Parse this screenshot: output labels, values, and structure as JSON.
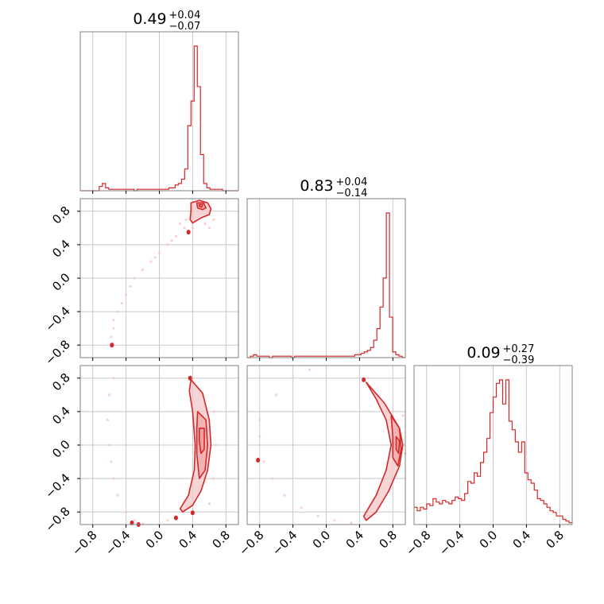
{
  "figure": {
    "type": "corner-plot"
  },
  "colors": {
    "line": "#d62728",
    "fill": "#f4c7c8",
    "fill_dark": "#e88a8c",
    "grid": "#c8c8c8",
    "axes": "#808080"
  },
  "chart_data": {
    "type": "corner",
    "axis_range": [
      -0.95,
      0.95
    ],
    "ticks": [
      -0.8,
      -0.4,
      0.0,
      0.4,
      0.8
    ],
    "tick_labels": [
      "−0.8",
      "−0.4",
      "0.0",
      "0.4",
      "0.8"
    ],
    "grid": true,
    "parameters": [
      {
        "title": {
          "value": "0.49",
          "upper": "+0.04",
          "lower": "−0.07"
        },
        "histogram": [
          0,
          0,
          0,
          0,
          0,
          0,
          0.03,
          0.05,
          0.02,
          0.01,
          0.01,
          0.01,
          0.01,
          0.01,
          0.01,
          0.01,
          0.01,
          0,
          0.01,
          0.01,
          0.01,
          0.01,
          0.01,
          0.01,
          0.01,
          0.01,
          0.01,
          0.01,
          0.02,
          0.02,
          0.04,
          0.05,
          0.08,
          0.15,
          0.45,
          0.62,
          1.0,
          0.72,
          0.25,
          0.05,
          0.02,
          0.01,
          0.01,
          0.01,
          0.01,
          0,
          0,
          0,
          0,
          0
        ]
      },
      {
        "title": {
          "value": "0.83",
          "upper": "+0.04",
          "lower": "−0.14"
        },
        "histogram": [
          0,
          0.01,
          0.02,
          0.01,
          0.01,
          0.01,
          0.01,
          0,
          0.01,
          0.01,
          0.01,
          0.01,
          0.01,
          0.01,
          0,
          0.01,
          0.01,
          0.01,
          0.01,
          0.01,
          0.01,
          0.01,
          0.01,
          0.01,
          0.01,
          0.01,
          0.01,
          0.01,
          0.01,
          0.01,
          0.01,
          0.01,
          0.01,
          0.01,
          0.02,
          0.02,
          0.03,
          0.04,
          0.05,
          0.07,
          0.12,
          0.2,
          0.35,
          0.55,
          1.0,
          0.28,
          0.04,
          0.02,
          0.01,
          0
        ]
      },
      {
        "title": {
          "value": "0.09",
          "upper": "+0.27",
          "lower": "−0.39"
        },
        "histogram": [
          0.1,
          0.08,
          0.1,
          0.09,
          0.12,
          0.11,
          0.15,
          0.13,
          0.12,
          0.14,
          0.13,
          0.12,
          0.14,
          0.16,
          0.15,
          0.14,
          0.18,
          0.25,
          0.24,
          0.3,
          0.28,
          0.36,
          0.42,
          0.5,
          0.65,
          0.74,
          0.82,
          0.84,
          0.7,
          0.84,
          0.6,
          0.55,
          0.48,
          0.42,
          0.48,
          0.3,
          0.26,
          0.24,
          0.2,
          0.15,
          0.14,
          0.12,
          0.1,
          0.08,
          0.07,
          0.05,
          0.05,
          0.03,
          0.02,
          0.01
        ]
      }
    ],
    "pairs": [
      {
        "row": 1,
        "col": 0,
        "contours": [
          [
            [
              0.38,
              0.9
            ],
            [
              0.48,
              0.93
            ],
            [
              0.58,
              0.9
            ],
            [
              0.62,
              0.83
            ],
            [
              0.6,
              0.76
            ],
            [
              0.5,
              0.72
            ],
            [
              0.4,
              0.66
            ],
            [
              0.37,
              0.7
            ],
            [
              0.38,
              0.8
            ]
          ],
          [
            [
              0.45,
              0.9
            ],
            [
              0.53,
              0.9
            ],
            [
              0.56,
              0.84
            ],
            [
              0.52,
              0.82
            ],
            [
              0.46,
              0.84
            ]
          ],
          [
            [
              0.48,
              0.88
            ],
            [
              0.52,
              0.88
            ],
            [
              0.51,
              0.85
            ],
            [
              0.48,
              0.86
            ]
          ]
        ],
        "points": [
          [
            0.3,
            0.6
          ],
          [
            0.32,
            0.7
          ],
          [
            0.2,
            0.5
          ],
          [
            0.1,
            0.4
          ],
          [
            0.0,
            0.3
          ],
          [
            -0.1,
            0.2
          ],
          [
            -0.2,
            0.1
          ],
          [
            -0.3,
            0.0
          ],
          [
            -0.35,
            -0.1
          ],
          [
            -0.4,
            -0.2
          ],
          [
            -0.45,
            -0.3
          ],
          [
            -0.5,
            -0.4
          ],
          [
            -0.55,
            -0.5
          ],
          [
            -0.55,
            -0.6
          ],
          [
            -0.58,
            -0.7
          ],
          [
            -0.56,
            -0.78
          ],
          [
            0.34,
            0.55
          ],
          [
            0.6,
            0.6
          ],
          [
            0.65,
            0.7
          ],
          [
            0.25,
            0.65
          ],
          [
            -0.05,
            0.25
          ],
          [
            0.15,
            0.45
          ],
          [
            0.4,
            0.6
          ],
          [
            0.55,
            0.65
          ]
        ],
        "blobs": [
          [
            -0.57,
            -0.8
          ],
          [
            0.35,
            0.55
          ]
        ]
      },
      {
        "row": 2,
        "col": 0,
        "contours": [
          [
            [
              0.38,
              0.78
            ],
            [
              0.52,
              0.62
            ],
            [
              0.6,
              0.3
            ],
            [
              0.62,
              0.0
            ],
            [
              0.58,
              -0.3
            ],
            [
              0.5,
              -0.55
            ],
            [
              0.4,
              -0.72
            ],
            [
              0.28,
              -0.8
            ],
            [
              0.25,
              -0.76
            ],
            [
              0.35,
              -0.6
            ],
            [
              0.42,
              -0.3
            ],
            [
              0.43,
              0.0
            ],
            [
              0.4,
              0.4
            ],
            [
              0.36,
              0.65
            ]
          ],
          [
            [
              0.46,
              0.4
            ],
            [
              0.56,
              0.3
            ],
            [
              0.58,
              0.0
            ],
            [
              0.55,
              -0.3
            ],
            [
              0.48,
              -0.4
            ],
            [
              0.45,
              -0.1
            ],
            [
              0.45,
              0.2
            ]
          ],
          [
            [
              0.48,
              0.2
            ],
            [
              0.54,
              0.2
            ],
            [
              0.54,
              -0.05
            ],
            [
              0.5,
              -0.1
            ],
            [
              0.48,
              0.05
            ]
          ]
        ],
        "points": [
          [
            -0.6,
            0.0
          ],
          [
            -0.58,
            -0.2
          ],
          [
            -0.55,
            -0.4
          ],
          [
            -0.5,
            -0.6
          ],
          [
            -0.4,
            -0.8
          ],
          [
            -0.3,
            -0.9
          ],
          [
            -0.2,
            -0.94
          ],
          [
            0.0,
            -0.95
          ],
          [
            0.1,
            -0.9
          ],
          [
            0.2,
            -0.86
          ],
          [
            -0.62,
            0.3
          ],
          [
            -0.6,
            0.6
          ],
          [
            -0.55,
            0.8
          ],
          [
            0.6,
            -0.7
          ],
          [
            0.65,
            -0.4
          ],
          [
            0.68,
            0.0
          ],
          [
            0.66,
            0.4
          ]
        ],
        "blobs": [
          [
            -0.33,
            -0.93
          ],
          [
            -0.25,
            -0.95
          ],
          [
            0.2,
            -0.87
          ],
          [
            0.37,
            0.8
          ],
          [
            0.4,
            -0.81
          ]
        ]
      },
      {
        "row": 2,
        "col": 1,
        "contours": [
          [
            [
              0.48,
              0.75
            ],
            [
              0.7,
              0.5
            ],
            [
              0.88,
              0.2
            ],
            [
              0.92,
              0.0
            ],
            [
              0.88,
              -0.25
            ],
            [
              0.75,
              -0.55
            ],
            [
              0.6,
              -0.8
            ],
            [
              0.48,
              -0.9
            ],
            [
              0.45,
              -0.85
            ],
            [
              0.6,
              -0.6
            ],
            [
              0.72,
              -0.3
            ],
            [
              0.78,
              0.0
            ],
            [
              0.72,
              0.3
            ],
            [
              0.6,
              0.55
            ]
          ],
          [
            [
              0.78,
              0.35
            ],
            [
              0.88,
              0.2
            ],
            [
              0.9,
              -0.05
            ],
            [
              0.86,
              -0.25
            ],
            [
              0.8,
              -0.15
            ],
            [
              0.8,
              0.1
            ]
          ],
          [
            [
              0.84,
              0.1
            ],
            [
              0.88,
              0.05
            ],
            [
              0.87,
              -0.1
            ],
            [
              0.84,
              -0.05
            ]
          ]
        ],
        "points": [
          [
            -0.8,
            0.1
          ],
          [
            -0.75,
            -0.2
          ],
          [
            -0.65,
            -0.4
          ],
          [
            -0.5,
            -0.6
          ],
          [
            -0.3,
            -0.75
          ],
          [
            -0.1,
            -0.85
          ],
          [
            0.1,
            -0.9
          ],
          [
            0.3,
            -0.93
          ],
          [
            -0.8,
            0.3
          ],
          [
            -0.6,
            0.6
          ],
          [
            -0.4,
            0.8
          ],
          [
            -0.2,
            0.9
          ],
          [
            0.5,
            0.8
          ],
          [
            0.92,
            0.35
          ],
          [
            0.95,
            -0.1
          ]
        ],
        "blobs": [
          [
            -0.82,
            -0.18
          ],
          [
            0.45,
            0.78
          ]
        ]
      }
    ]
  }
}
